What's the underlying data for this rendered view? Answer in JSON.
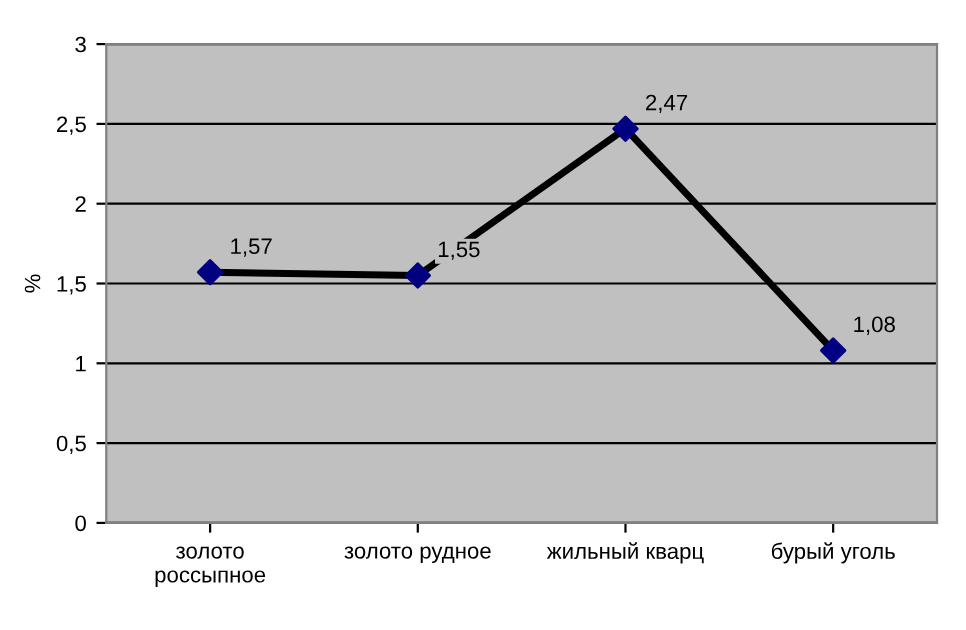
{
  "chart_data": {
    "type": "line",
    "ylabel": "%",
    "categories": [
      "золото\nроссыпное",
      "золото рудное",
      "жильный кварц",
      "бурый уголь"
    ],
    "series": [
      {
        "color": "#000000",
        "values": [
          1.57,
          1.55,
          2.47,
          1.08
        ],
        "value_labels": [
          "1,57",
          "1,55",
          "2,47",
          "1,08"
        ]
      }
    ],
    "ylim": [
      0,
      3
    ],
    "yticks": [
      0,
      {
        "value": 0.5,
        "label": "0,5"
      },
      1,
      {
        "value": 1.5,
        "label": "1,5"
      },
      2,
      {
        "value": 2.5,
        "label": "2,5"
      },
      3
    ],
    "grid": "y",
    "marker": "diamond",
    "line_style": "solid"
  }
}
